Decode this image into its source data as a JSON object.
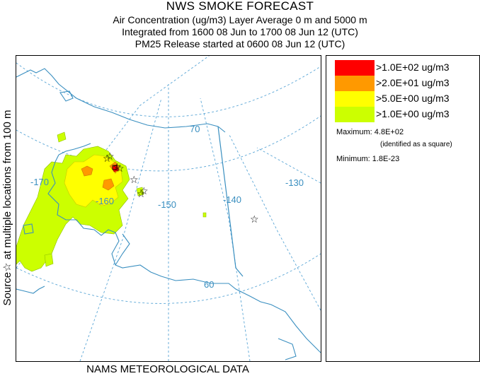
{
  "title": "NWS SMOKE FORECAST",
  "subtitle_lines": [
    "Air Concentration (ug/m3) Layer Average    0 m and  5000 m",
    "Integrated from 1600 08 Jun to 1700 08 Jun 12 (UTC)",
    "PM25 Release started at 0600 08 Jun 12 (UTC)"
  ],
  "side_label": "Source☆ at multiple locations   from   100 m",
  "bottom_label": "NAMS METEOROLOGICAL DATA",
  "legend": [
    {
      "label": ">1.0E+02 ug/m3",
      "color": "#ff0000"
    },
    {
      "label": ">2.0E+01 ug/m3",
      "color": "#ff9900"
    },
    {
      "label": ">5.0E+00 ug/m3",
      "color": "#ffff00"
    },
    {
      "label": ">1.0E+00 ug/m3",
      "color": "#ccff00"
    }
  ],
  "maximum_label": "Maximum: 4.8E+02",
  "maximum_note": "(identified as a square)",
  "minimum_label": "Minimum: 1.8E-23",
  "map_labels": {
    "lon_170": "-170",
    "lon_160": "-160",
    "lon_150": "-150",
    "lon_140": "-140",
    "lon_130": "-130",
    "lat_70": "70",
    "lat_60": "60"
  },
  "colors": {
    "graticule": "#5aa6d6",
    "coastline": "#3a8fc0",
    "border": "#3a8fc0"
  }
}
